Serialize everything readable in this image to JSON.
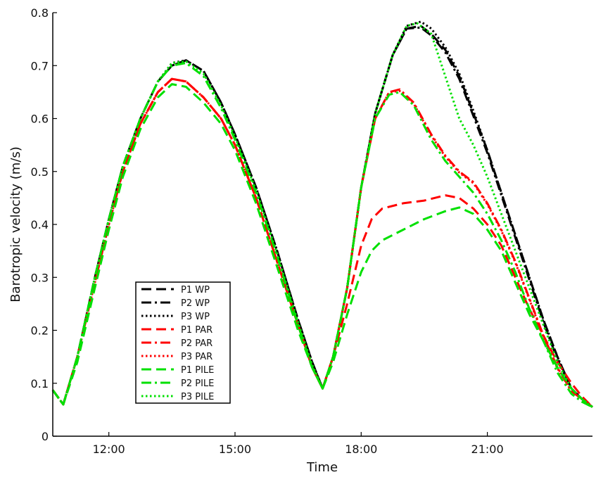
{
  "chart_data": {
    "type": "line",
    "title": "",
    "xlabel": "Time",
    "ylabel": "Barotropic velocity (m/s)",
    "xlim": [
      "10:40",
      "23:30"
    ],
    "ylim": [
      0,
      0.8
    ],
    "x_ticks": [
      "12:00",
      "15:00",
      "18:00",
      "21:00"
    ],
    "y_ticks": [
      "0",
      "0.1",
      "0.2",
      "0.3",
      "0.4",
      "0.5",
      "0.6",
      "0.7",
      "0.8"
    ],
    "grid": false,
    "legend_position": "lower-left",
    "series": [
      {
        "name": "P1 WP",
        "color": "#000000",
        "dash": "dashed",
        "x": [
          "10:40",
          "10:55",
          "11:15",
          "11:40",
          "12:00",
          "12:20",
          "12:45",
          "13:10",
          "13:30",
          "13:50",
          "14:15",
          "14:40",
          "15:00",
          "15:30",
          "16:00",
          "16:30",
          "16:50",
          "17:05",
          "17:20",
          "17:40",
          "18:00",
          "18:20",
          "18:45",
          "19:05",
          "19:25",
          "19:40",
          "20:00",
          "20:20",
          "20:40",
          "21:00",
          "21:20",
          "21:40",
          "22:00",
          "22:20",
          "22:40",
          "23:00",
          "23:15",
          "23:30"
        ],
        "y": [
          0.087,
          0.06,
          0.15,
          0.3,
          0.41,
          0.51,
          0.6,
          0.67,
          0.7,
          0.71,
          0.69,
          0.63,
          0.57,
          0.47,
          0.35,
          0.22,
          0.14,
          0.09,
          0.15,
          0.28,
          0.47,
          0.61,
          0.72,
          0.77,
          0.775,
          0.76,
          0.73,
          0.68,
          0.61,
          0.54,
          0.46,
          0.38,
          0.3,
          0.22,
          0.15,
          0.09,
          0.07,
          0.055
        ]
      },
      {
        "name": "P2 WP",
        "color": "#000000",
        "dash": "dashdot",
        "x": [
          "10:40",
          "10:55",
          "11:15",
          "11:40",
          "12:00",
          "12:20",
          "12:45",
          "13:10",
          "13:30",
          "13:50",
          "14:15",
          "14:40",
          "15:00",
          "15:30",
          "16:00",
          "16:30",
          "16:50",
          "17:05",
          "17:20",
          "17:40",
          "18:00",
          "18:20",
          "18:45",
          "19:05",
          "19:25",
          "19:40",
          "20:00",
          "20:20",
          "20:40",
          "21:00",
          "21:20",
          "21:40",
          "22:00",
          "22:20",
          "22:40",
          "23:00",
          "23:15",
          "23:30"
        ],
        "y": [
          0.087,
          0.06,
          0.15,
          0.3,
          0.41,
          0.51,
          0.6,
          0.67,
          0.7,
          0.71,
          0.69,
          0.63,
          0.57,
          0.47,
          0.35,
          0.22,
          0.14,
          0.09,
          0.15,
          0.28,
          0.47,
          0.61,
          0.72,
          0.77,
          0.772,
          0.757,
          0.725,
          0.675,
          0.605,
          0.535,
          0.455,
          0.375,
          0.295,
          0.215,
          0.145,
          0.09,
          0.07,
          0.055
        ]
      },
      {
        "name": "P3 WP",
        "color": "#000000",
        "dash": "dotted",
        "x": [
          "10:40",
          "10:55",
          "11:15",
          "11:40",
          "12:00",
          "12:20",
          "12:45",
          "13:10",
          "13:30",
          "13:50",
          "14:15",
          "14:40",
          "15:00",
          "15:30",
          "16:00",
          "16:30",
          "16:50",
          "17:05",
          "17:20",
          "17:40",
          "18:00",
          "18:20",
          "18:45",
          "19:05",
          "19:25",
          "19:40",
          "20:00",
          "20:20",
          "20:40",
          "21:00",
          "21:20",
          "21:40",
          "22:00",
          "22:20",
          "22:40",
          "23:00",
          "23:15",
          "23:30"
        ],
        "y": [
          0.087,
          0.06,
          0.15,
          0.3,
          0.41,
          0.51,
          0.6,
          0.67,
          0.705,
          0.71,
          0.69,
          0.63,
          0.57,
          0.47,
          0.35,
          0.22,
          0.14,
          0.09,
          0.15,
          0.28,
          0.47,
          0.61,
          0.72,
          0.775,
          0.783,
          0.77,
          0.735,
          0.685,
          0.615,
          0.54,
          0.46,
          0.38,
          0.3,
          0.22,
          0.15,
          0.09,
          0.07,
          0.055
        ]
      },
      {
        "name": "P1 PAR",
        "color": "#ff0000",
        "dash": "dashed",
        "x": [
          "10:40",
          "10:55",
          "11:15",
          "11:40",
          "12:00",
          "12:20",
          "12:45",
          "13:10",
          "13:30",
          "13:50",
          "14:15",
          "14:40",
          "15:00",
          "15:30",
          "16:00",
          "16:30",
          "16:50",
          "17:05",
          "17:20",
          "17:40",
          "18:00",
          "18:15",
          "18:30",
          "19:00",
          "19:30",
          "20:00",
          "20:20",
          "20:40",
          "21:00",
          "21:20",
          "21:40",
          "22:00",
          "22:20",
          "22:40",
          "23:00",
          "23:15",
          "23:30"
        ],
        "y": [
          0.087,
          0.06,
          0.15,
          0.29,
          0.4,
          0.5,
          0.59,
          0.65,
          0.675,
          0.67,
          0.64,
          0.6,
          0.55,
          0.45,
          0.33,
          0.21,
          0.13,
          0.09,
          0.15,
          0.25,
          0.36,
          0.41,
          0.43,
          0.44,
          0.445,
          0.455,
          0.45,
          0.43,
          0.4,
          0.36,
          0.3,
          0.24,
          0.19,
          0.14,
          0.1,
          0.075,
          0.055
        ]
      },
      {
        "name": "P2 PAR",
        "color": "#ff0000",
        "dash": "dashdot",
        "x": [
          "10:40",
          "10:55",
          "11:15",
          "11:40",
          "12:00",
          "12:20",
          "12:45",
          "13:10",
          "13:30",
          "13:50",
          "14:15",
          "14:40",
          "15:00",
          "15:30",
          "16:00",
          "16:30",
          "16:50",
          "17:05",
          "17:20",
          "17:40",
          "18:00",
          "18:20",
          "18:40",
          "18:55",
          "19:15",
          "19:40",
          "20:00",
          "20:20",
          "20:40",
          "21:00",
          "21:20",
          "21:40",
          "22:00",
          "22:20",
          "22:40",
          "23:00",
          "23:15",
          "23:30"
        ],
        "y": [
          0.087,
          0.06,
          0.15,
          0.29,
          0.4,
          0.5,
          0.59,
          0.65,
          0.675,
          0.67,
          0.64,
          0.6,
          0.55,
          0.45,
          0.33,
          0.21,
          0.13,
          0.09,
          0.15,
          0.28,
          0.47,
          0.6,
          0.65,
          0.655,
          0.63,
          0.57,
          0.53,
          0.5,
          0.48,
          0.44,
          0.39,
          0.33,
          0.26,
          0.19,
          0.13,
          0.085,
          0.07,
          0.055
        ]
      },
      {
        "name": "P3 PAR",
        "color": "#ff0000",
        "dash": "dotted",
        "x": [
          "10:40",
          "10:55",
          "11:15",
          "11:40",
          "12:00",
          "12:20",
          "12:45",
          "13:10",
          "13:30",
          "13:50",
          "14:15",
          "14:40",
          "15:00",
          "15:30",
          "16:00",
          "16:30",
          "16:50",
          "17:05",
          "17:20",
          "17:40",
          "18:00",
          "18:20",
          "18:40",
          "18:55",
          "19:15",
          "19:40",
          "20:00",
          "20:20",
          "20:40",
          "21:00",
          "21:20",
          "21:40",
          "22:00",
          "22:20",
          "22:40",
          "23:00",
          "23:15",
          "23:30"
        ],
        "y": [
          0.087,
          0.06,
          0.15,
          0.29,
          0.4,
          0.5,
          0.59,
          0.65,
          0.675,
          0.67,
          0.64,
          0.6,
          0.55,
          0.45,
          0.33,
          0.21,
          0.13,
          0.09,
          0.15,
          0.28,
          0.47,
          0.6,
          0.65,
          0.652,
          0.628,
          0.568,
          0.528,
          0.498,
          0.478,
          0.438,
          0.388,
          0.328,
          0.258,
          0.188,
          0.128,
          0.085,
          0.07,
          0.055
        ]
      },
      {
        "name": "P1 PILE",
        "color": "#00e000",
        "dash": "dashed",
        "x": [
          "10:40",
          "10:55",
          "11:15",
          "11:40",
          "12:00",
          "12:20",
          "12:45",
          "13:10",
          "13:30",
          "13:50",
          "14:15",
          "14:40",
          "15:00",
          "15:30",
          "16:00",
          "16:30",
          "16:50",
          "17:05",
          "17:20",
          "17:40",
          "18:00",
          "18:15",
          "18:30",
          "19:00",
          "19:30",
          "20:00",
          "20:20",
          "20:40",
          "21:00",
          "21:20",
          "21:40",
          "22:00",
          "22:20",
          "22:40",
          "23:00",
          "23:15",
          "23:30"
        ],
        "y": [
          0.087,
          0.06,
          0.14,
          0.28,
          0.39,
          0.49,
          0.58,
          0.64,
          0.665,
          0.66,
          0.63,
          0.59,
          0.54,
          0.44,
          0.32,
          0.2,
          0.13,
          0.09,
          0.14,
          0.23,
          0.31,
          0.35,
          0.37,
          0.39,
          0.41,
          0.425,
          0.432,
          0.42,
          0.39,
          0.35,
          0.29,
          0.23,
          0.18,
          0.13,
          0.09,
          0.07,
          0.055
        ]
      },
      {
        "name": "P2 PILE",
        "color": "#00e000",
        "dash": "dashdot",
        "x": [
          "10:40",
          "10:55",
          "11:15",
          "11:40",
          "12:00",
          "12:20",
          "12:45",
          "13:10",
          "13:30",
          "13:50",
          "14:15",
          "14:40",
          "15:00",
          "15:30",
          "16:00",
          "16:30",
          "16:50",
          "17:05",
          "17:20",
          "17:40",
          "18:00",
          "18:20",
          "18:40",
          "18:55",
          "19:15",
          "19:40",
          "20:00",
          "20:20",
          "20:40",
          "21:00",
          "21:20",
          "21:40",
          "22:00",
          "22:20",
          "22:40",
          "23:00",
          "23:15",
          "23:30"
        ],
        "y": [
          0.087,
          0.06,
          0.15,
          0.3,
          0.41,
          0.51,
          0.6,
          0.67,
          0.7,
          0.705,
          0.68,
          0.62,
          0.56,
          0.46,
          0.34,
          0.21,
          0.13,
          0.09,
          0.15,
          0.28,
          0.47,
          0.6,
          0.645,
          0.65,
          0.625,
          0.56,
          0.52,
          0.49,
          0.46,
          0.42,
          0.37,
          0.31,
          0.24,
          0.18,
          0.12,
          0.08,
          0.065,
          0.055
        ]
      },
      {
        "name": "P3 PILE",
        "color": "#00e000",
        "dash": "dotted",
        "x": [
          "10:40",
          "10:55",
          "11:15",
          "11:40",
          "12:00",
          "12:20",
          "12:45",
          "13:10",
          "13:30",
          "13:50",
          "14:15",
          "14:40",
          "15:00",
          "15:30",
          "16:00",
          "16:30",
          "16:50",
          "17:05",
          "17:20",
          "17:40",
          "18:00",
          "18:20",
          "18:45",
          "19:05",
          "19:20",
          "19:40",
          "20:00",
          "20:20",
          "20:40",
          "21:00",
          "21:20",
          "21:40",
          "22:00",
          "22:20",
          "22:40",
          "23:00",
          "23:15",
          "23:30"
        ],
        "y": [
          0.087,
          0.06,
          0.15,
          0.3,
          0.41,
          0.51,
          0.6,
          0.67,
          0.705,
          0.708,
          0.685,
          0.625,
          0.565,
          0.465,
          0.345,
          0.215,
          0.135,
          0.09,
          0.15,
          0.28,
          0.47,
          0.61,
          0.72,
          0.775,
          0.78,
          0.76,
          0.68,
          0.6,
          0.55,
          0.49,
          0.42,
          0.35,
          0.28,
          0.21,
          0.14,
          0.09,
          0.07,
          0.055
        ]
      }
    ]
  }
}
